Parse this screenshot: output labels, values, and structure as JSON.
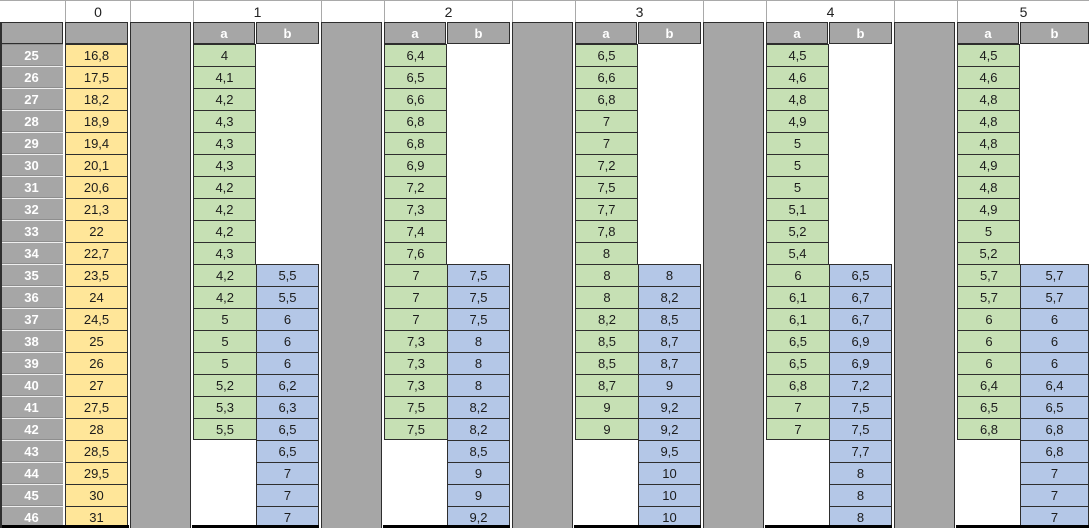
{
  "title_row": {
    "col0_label": "0",
    "group_labels": [
      "1",
      "2",
      "3",
      "4",
      "5"
    ]
  },
  "sub_headers": [
    "a",
    "b"
  ],
  "rows": [
    "25",
    "26",
    "27",
    "28",
    "29",
    "30",
    "31",
    "32",
    "33",
    "34",
    "35",
    "36",
    "37",
    "38",
    "39",
    "40",
    "41",
    "42",
    "43",
    "44",
    "45",
    "46"
  ],
  "col0": [
    "16,8",
    "17,5",
    "18,2",
    "18,9",
    "19,4",
    "20,1",
    "20,6",
    "21,3",
    "22",
    "22,7",
    "23,5",
    "24",
    "24,5",
    "25",
    "26",
    "27",
    "27,5",
    "28",
    "28,5",
    "29,5",
    "30",
    "31"
  ],
  "groups": [
    {
      "label": "1",
      "a": [
        "4",
        "4,1",
        "4,2",
        "4,3",
        "4,3",
        "4,3",
        "4,2",
        "4,2",
        "4,2",
        "4,3",
        "4,2",
        "4,2",
        "5",
        "5",
        "5",
        "5,2",
        "5,3",
        "5,5",
        "",
        "",
        "",
        ""
      ],
      "b": [
        "",
        "",
        "",
        "",
        "",
        "",
        "",
        "",
        "",
        "",
        "5,5",
        "5,5",
        "6",
        "6",
        "6",
        "6,2",
        "6,3",
        "6,5",
        "6,5",
        "7",
        "7",
        "7"
      ]
    },
    {
      "label": "2",
      "a": [
        "6,4",
        "6,5",
        "6,6",
        "6,8",
        "6,8",
        "6,9",
        "7,2",
        "7,3",
        "7,4",
        "7,6",
        "7",
        "7",
        "7",
        "7,3",
        "7,3",
        "7,3",
        "7,5",
        "7,5",
        "",
        "",
        "",
        ""
      ],
      "b": [
        "",
        "",
        "",
        "",
        "",
        "",
        "",
        "",
        "",
        "",
        "7,5",
        "7,5",
        "7,5",
        "8",
        "8",
        "8",
        "8,2",
        "8,2",
        "8,5",
        "9",
        "9",
        "9,2"
      ]
    },
    {
      "label": "3",
      "a": [
        "6,5",
        "6,6",
        "6,8",
        "7",
        "7",
        "7,2",
        "7,5",
        "7,7",
        "7,8",
        "8",
        "8",
        "8",
        "8,2",
        "8,5",
        "8,5",
        "8,7",
        "9",
        "9",
        "",
        "",
        "",
        ""
      ],
      "b": [
        "",
        "",
        "",
        "",
        "",
        "",
        "",
        "",
        "",
        "",
        "8",
        "8,2",
        "8,5",
        "8,7",
        "8,7",
        "9",
        "9,2",
        "9,2",
        "9,5",
        "10",
        "10",
        "10"
      ]
    },
    {
      "label": "4",
      "a": [
        "4,5",
        "4,6",
        "4,8",
        "4,9",
        "5",
        "5",
        "5",
        "5,1",
        "5,2",
        "5,4",
        "6",
        "6,1",
        "6,1",
        "6,5",
        "6,5",
        "6,8",
        "7",
        "7",
        "",
        "",
        "",
        ""
      ],
      "b": [
        "",
        "",
        "",
        "",
        "",
        "",
        "",
        "",
        "",
        "",
        "6,5",
        "6,7",
        "6,7",
        "6,9",
        "6,9",
        "7,2",
        "7,5",
        "7,5",
        "7,7",
        "8",
        "8",
        "8"
      ]
    },
    {
      "label": "5",
      "a": [
        "4,5",
        "4,6",
        "4,8",
        "4,8",
        "4,8",
        "4,9",
        "4,8",
        "4,9",
        "5",
        "5,2",
        "5,7",
        "5,7",
        "6",
        "6",
        "6",
        "6,4",
        "6,5",
        "6,8",
        "",
        "",
        "",
        ""
      ],
      "b": [
        "",
        "",
        "",
        "",
        "",
        "",
        "",
        "",
        "",
        "",
        "5,7",
        "5,7",
        "6",
        "6",
        "6",
        "6,4",
        "6,5",
        "6,8",
        "6,8",
        "7",
        "7",
        "7"
      ]
    }
  ],
  "colors": {
    "header_gray": "#a6a6a6",
    "col0_fill": "#ffe699",
    "a_fill": "#c6e0b4",
    "b_fill": "#b4c7e7",
    "border_dark": "#2e2e2e",
    "cell_text": "#1c1c1c",
    "header_text": "#ffffff",
    "bottom_border": "#000000"
  }
}
